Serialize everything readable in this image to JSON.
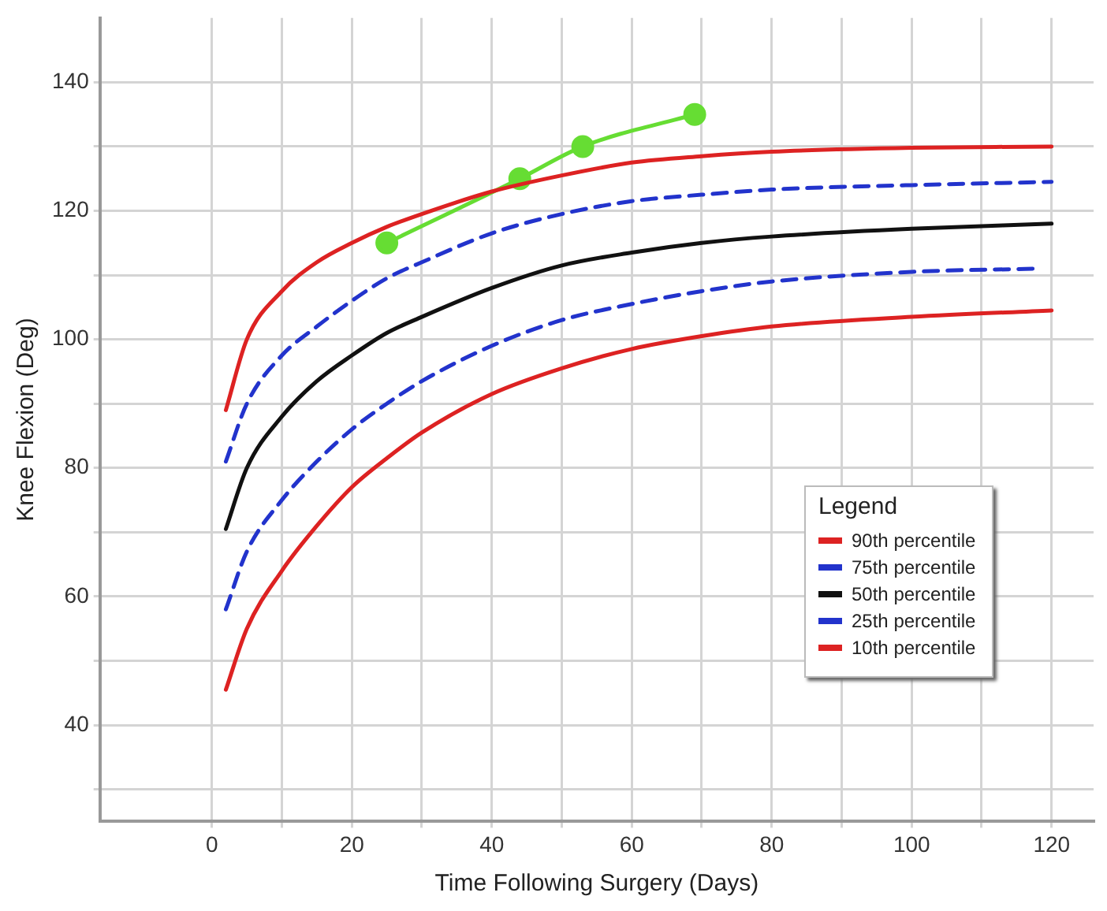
{
  "chart_data": {
    "type": "line",
    "xlabel": "Time Following Surgery (Days)",
    "ylabel": "Knee Flexion (Deg)",
    "legend_title": "Legend",
    "legend": "right",
    "xlim": [
      -16,
      126
    ],
    "xticks": [
      0,
      {
        "value": 10,
        "label": null
      },
      20,
      {
        "value": 30,
        "label": null
      },
      40,
      {
        "value": 50,
        "label": null
      },
      60,
      {
        "value": 70,
        "label": null
      },
      80,
      {
        "value": 90,
        "label": null
      },
      100,
      {
        "value": 110,
        "label": null
      },
      120
    ],
    "ylim": [
      25,
      150
    ],
    "yticks": [
      {
        "value": 30,
        "label": null
      },
      40,
      {
        "value": 50,
        "label": null
      },
      60,
      {
        "value": 70,
        "label": null
      },
      80,
      {
        "value": 90,
        "label": null
      },
      100,
      {
        "value": 110,
        "label": null
      },
      120,
      {
        "value": 130,
        "label": null
      },
      140
    ],
    "grid": true,
    "series": [
      {
        "name": "90th percentile",
        "color": "#dd2222",
        "line_style": "solid",
        "marker": "none",
        "x": [
          2,
          5,
          10,
          15,
          20,
          25,
          30,
          40,
          50,
          60,
          70,
          80,
          100,
          120
        ],
        "values": [
          89,
          100,
          107.5,
          112,
          115,
          117.5,
          119.5,
          123,
          125.5,
          127.5,
          128.5,
          129.2,
          129.8,
          130
        ]
      },
      {
        "name": "75th percentile",
        "color": "#2233cc",
        "line_style": "dashed",
        "marker": "none",
        "x": [
          2,
          5,
          10,
          15,
          20,
          25,
          30,
          40,
          50,
          60,
          70,
          80,
          100,
          120
        ],
        "values": [
          81,
          90,
          97.5,
          102,
          106,
          109.5,
          112,
          116.5,
          119.5,
          121.5,
          122.5,
          123.3,
          124,
          124.5
        ]
      },
      {
        "name": "50th percentile",
        "color": "#111111",
        "line_style": "solid",
        "marker": "none",
        "x": [
          2,
          5,
          10,
          15,
          20,
          25,
          30,
          40,
          50,
          60,
          70,
          80,
          100,
          120
        ],
        "values": [
          70.5,
          80,
          88,
          93.5,
          97.5,
          101,
          103.5,
          108,
          111.5,
          113.5,
          115,
          116,
          117.2,
          118
        ]
      },
      {
        "name": "25th percentile",
        "color": "#2233cc",
        "line_style": "dashed",
        "marker": "none",
        "x": [
          2,
          5,
          10,
          15,
          20,
          25,
          30,
          40,
          50,
          60,
          70,
          80,
          100,
          118
        ],
        "values": [
          58,
          67,
          75,
          81,
          86,
          90,
          93.5,
          99,
          103,
          105.5,
          107.5,
          109,
          110.5,
          111
        ]
      },
      {
        "name": "10th percentile",
        "color": "#dd2222",
        "line_style": "solid",
        "marker": "none",
        "x": [
          2,
          5,
          10,
          15,
          20,
          25,
          30,
          40,
          50,
          60,
          70,
          80,
          100,
          120
        ],
        "values": [
          45.5,
          55,
          64,
          71,
          77,
          81.5,
          85.5,
          91.5,
          95.5,
          98.5,
          100.5,
          102,
          103.5,
          104.5
        ]
      },
      {
        "color": "#66dd33",
        "line_style": "solid",
        "marker": "circle",
        "x": [
          25,
          44,
          53,
          69
        ],
        "values": [
          115,
          125,
          130,
          135
        ]
      }
    ]
  }
}
